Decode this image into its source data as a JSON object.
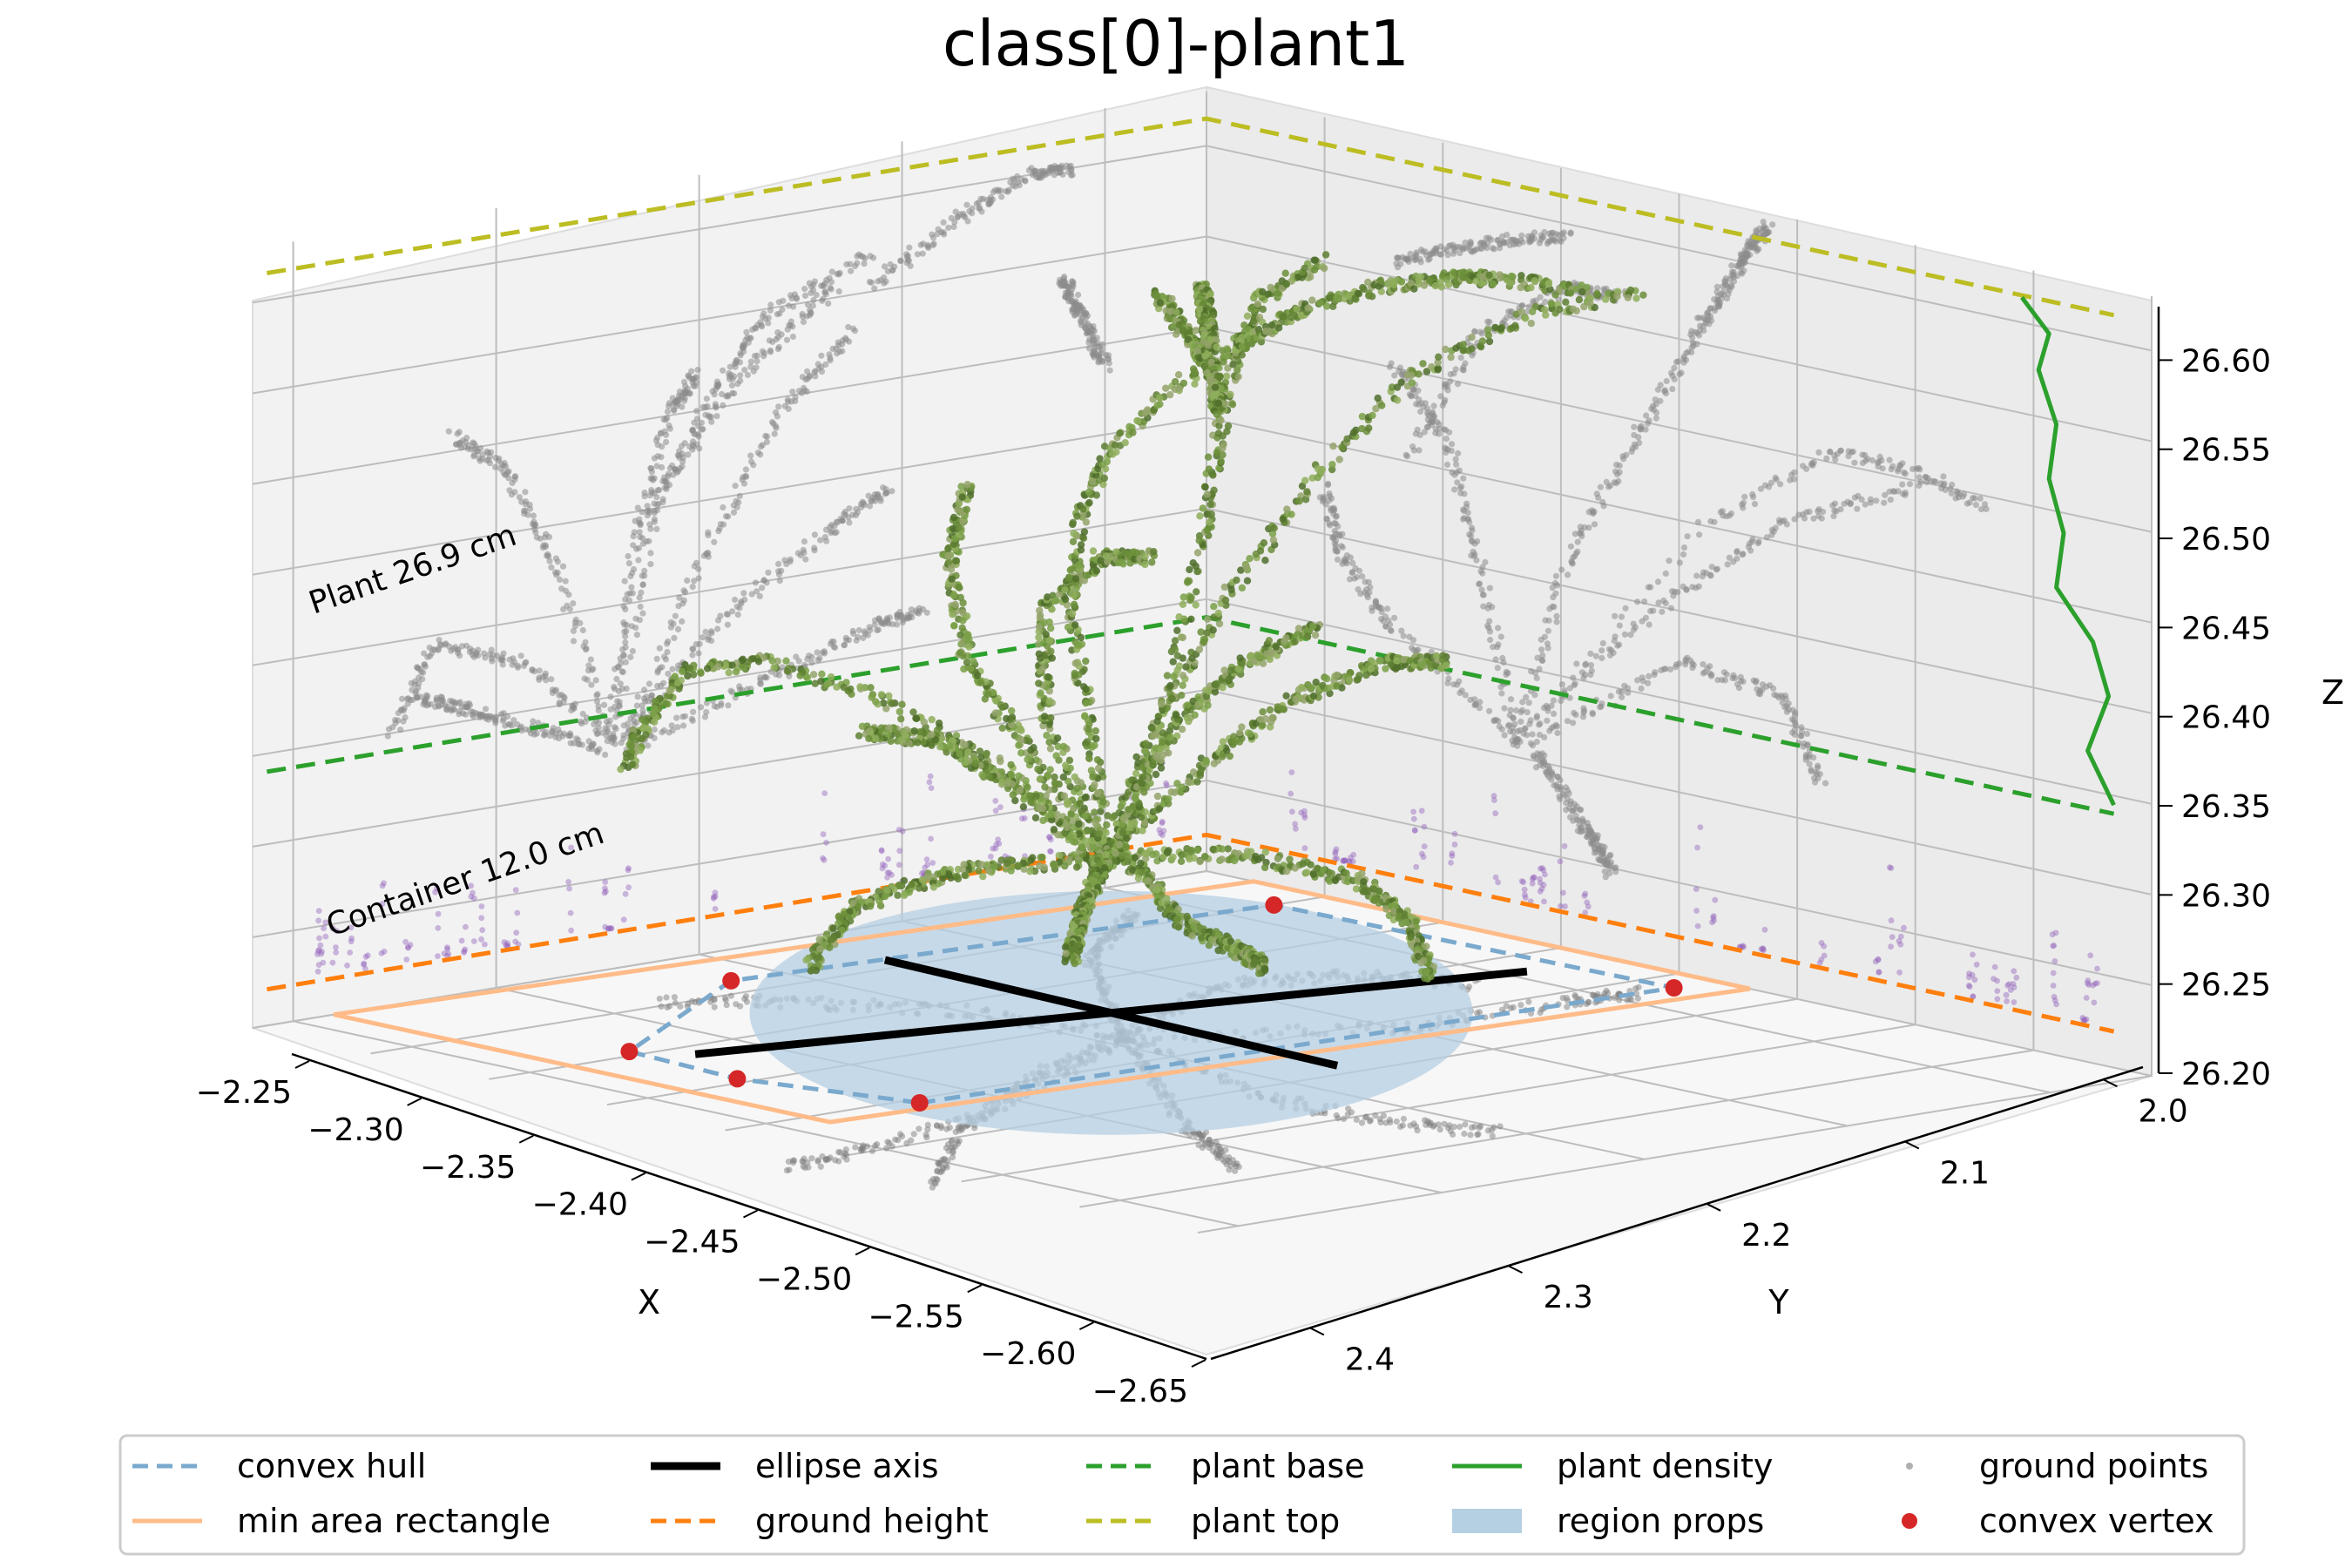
{
  "chart_data": {
    "type": "scatter",
    "projection": "3d",
    "title": "class[0]-plant1",
    "xlabel": "X",
    "ylabel": "Y",
    "zlabel": "Z",
    "xlim": [
      -2.25,
      -2.65
    ],
    "ylim": [
      2.45,
      1.98
    ],
    "zlim": [
      26.2,
      26.63
    ],
    "grid": true,
    "legend_position": "bottom",
    "x_ticks": [
      "−2.25",
      "−2.30",
      "−2.35",
      "−2.40",
      "−2.45",
      "−2.50",
      "−2.55",
      "−2.60",
      "−2.65"
    ],
    "x_tick_values": [
      -2.25,
      -2.3,
      -2.35,
      -2.4,
      -2.45,
      -2.5,
      -2.55,
      -2.6,
      -2.65
    ],
    "y_ticks": [
      "2.0",
      "2.1",
      "2.2",
      "2.3",
      "2.4"
    ],
    "y_tick_values": [
      2.0,
      2.1,
      2.2,
      2.3,
      2.4
    ],
    "z_ticks": [
      "26.20",
      "26.25",
      "26.30",
      "26.35",
      "26.40",
      "26.45",
      "26.50",
      "26.55",
      "26.60"
    ],
    "z_tick_values": [
      26.2,
      26.25,
      26.3,
      26.35,
      26.4,
      26.45,
      26.5,
      26.55,
      26.6
    ],
    "annotations": [
      {
        "text": "Plant 26.9 cm"
      },
      {
        "text": "Container 12.0 cm"
      }
    ],
    "levels": {
      "ground_height": 26.22,
      "plant_base": 26.34,
      "plant_top": 26.615
    },
    "convex_vertices": [
      {
        "x": -2.455,
        "y": 2.07
      },
      {
        "x": -2.465,
        "y": 2.43
      },
      {
        "x": -2.3,
        "y": 2.425
      },
      {
        "x": -2.285,
        "y": 2.175
      },
      {
        "x": -2.345,
        "y": 2.055
      },
      {
        "x": -2.395,
        "y": 2.05
      }
    ],
    "min_area_rectangle": [
      {
        "x": -2.46,
        "y": 2.02
      },
      {
        "x": -2.48,
        "y": 2.45
      },
      {
        "x": -2.27,
        "y": 2.45
      },
      {
        "x": -2.25,
        "y": 2.02
      }
    ],
    "ellipse": {
      "cx": -2.39,
      "cy": 2.24,
      "rx": 0.1,
      "ry": 0.21
    },
    "ellipse_axes": [
      [
        {
          "x": -2.36,
          "y": 2.07
        },
        {
          "x": -2.42,
          "y": 2.41
        }
      ],
      [
        {
          "x": -2.29,
          "y": 2.245
        },
        {
          "x": -2.49,
          "y": 2.235
        }
      ]
    ],
    "plant_density": [
      {
        "z": 26.34,
        "d": 0.0
      },
      {
        "z": 26.37,
        "d": 0.25
      },
      {
        "z": 26.4,
        "d": 0.05
      },
      {
        "z": 26.43,
        "d": 0.2
      },
      {
        "z": 26.46,
        "d": 0.55
      },
      {
        "z": 26.49,
        "d": 0.48
      },
      {
        "z": 26.52,
        "d": 0.62
      },
      {
        "z": 26.55,
        "d": 0.55
      },
      {
        "z": 26.58,
        "d": 0.72
      },
      {
        "z": 26.6,
        "d": 0.62
      },
      {
        "z": 26.62,
        "d": 0.88
      }
    ],
    "series": [
      {
        "name": "convex hull",
        "color": "#7aa9cd",
        "style": "dashed"
      },
      {
        "name": "min area rectangle",
        "color": "#ffbb88",
        "style": "solid"
      },
      {
        "name": "ellipse axis",
        "color": "#000000",
        "style": "solid-thick"
      },
      {
        "name": "ground height",
        "color": "#ff7f0e",
        "style": "dashed"
      },
      {
        "name": "plant base",
        "color": "#2ca02c",
        "style": "dashed"
      },
      {
        "name": "plant top",
        "color": "#bcbd22",
        "style": "dashed"
      },
      {
        "name": "plant density",
        "color": "#2ca02c",
        "style": "solid"
      },
      {
        "name": "region props",
        "color": "#b5cfe3",
        "style": "patch"
      },
      {
        "name": "ground points",
        "color": "#b0b0b0",
        "style": "dot"
      },
      {
        "name": "convex vertex",
        "color": "#d62728",
        "style": "marker"
      }
    ]
  }
}
